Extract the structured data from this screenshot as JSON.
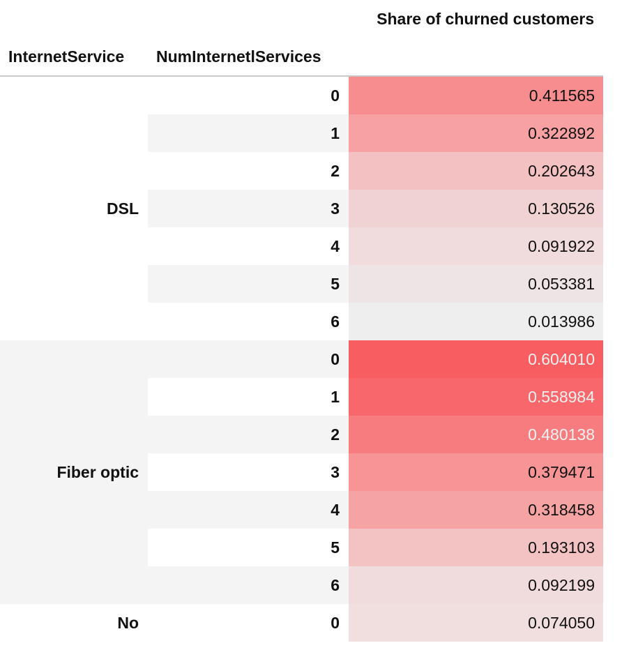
{
  "table": {
    "column_header": "Share of churned customers",
    "index_names": [
      "InternetService",
      "NumInternetlServices"
    ],
    "groups": [
      {
        "label": "DSL",
        "rows": [
          {
            "index": "0",
            "value": "0.411565",
            "bg": "#f78d8f",
            "light_text": false
          },
          {
            "index": "1",
            "value": "0.322892",
            "bg": "#f7a1a2",
            "light_text": false
          },
          {
            "index": "2",
            "value": "0.202643",
            "bg": "#f3c1c2",
            "light_text": false
          },
          {
            "index": "3",
            "value": "0.130526",
            "bg": "#f1d2d3",
            "light_text": false
          },
          {
            "index": "4",
            "value": "0.091922",
            "bg": "#f1dcdd",
            "light_text": false
          },
          {
            "index": "5",
            "value": "0.053381",
            "bg": "#efe4e5",
            "light_text": false
          },
          {
            "index": "6",
            "value": "0.013986",
            "bg": "#efeeee",
            "light_text": false
          }
        ]
      },
      {
        "label": "Fiber optic",
        "rows": [
          {
            "index": "0",
            "value": "0.604010",
            "bg": "#f85d61",
            "light_text": true
          },
          {
            "index": "1",
            "value": "0.558984",
            "bg": "#f7676b",
            "light_text": true
          },
          {
            "index": "2",
            "value": "0.480138",
            "bg": "#f77c7f",
            "light_text": true
          },
          {
            "index": "3",
            "value": "0.379471",
            "bg": "#f69496",
            "light_text": false
          },
          {
            "index": "4",
            "value": "0.318458",
            "bg": "#f6a3a4",
            "light_text": false
          },
          {
            "index": "5",
            "value": "0.193103",
            "bg": "#f3c3c4",
            "light_text": false
          },
          {
            "index": "6",
            "value": "0.092199",
            "bg": "#f1dcdd",
            "light_text": false
          }
        ]
      },
      {
        "label": "No",
        "rows": [
          {
            "index": "0",
            "value": "0.074050",
            "bg": "#f1dfe0",
            "light_text": false
          }
        ]
      }
    ]
  }
}
